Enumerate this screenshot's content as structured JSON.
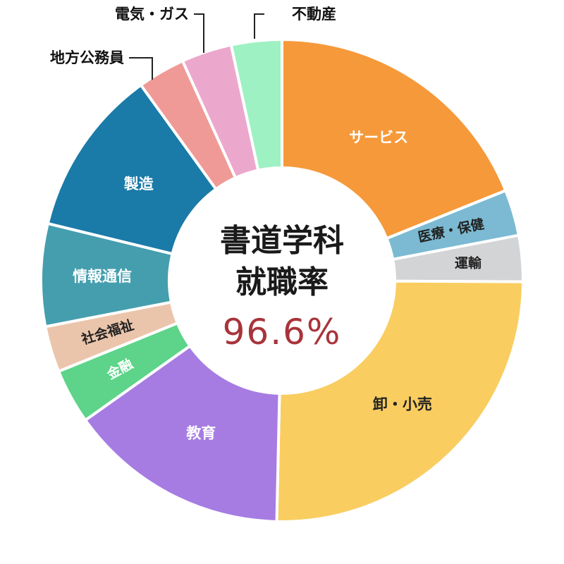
{
  "chart_data": {
    "type": "pie",
    "subtype": "donut",
    "center": {
      "title_line1": "書道学科",
      "title_line2": "就職率",
      "value": "96.6%"
    },
    "categories": [
      "サービス",
      "医療・保健",
      "運輸",
      "卸・小売",
      "教育",
      "金融",
      "社会福祉",
      "情報通信",
      "製造",
      "地方公務員",
      "電気・ガス",
      "不動産"
    ],
    "values": [
      19.0,
      3.1,
      3.1,
      25.4,
      14.9,
      3.7,
      3.1,
      6.9,
      11.3,
      3.2,
      3.4,
      3.4
    ],
    "colors": [
      "#f6993a",
      "#7bbad2",
      "#d3d4d6",
      "#f9cd60",
      "#a67ce3",
      "#5dd489",
      "#ebc5ab",
      "#459eae",
      "#1a7aa8",
      "#ef9a96",
      "#eca8cc",
      "#9ef1c2"
    ],
    "label_colors": [
      "#ffffff",
      "#222222",
      "#222222",
      "#222222",
      "#ffffff",
      "#ffffff",
      "#222222",
      "#ffffff",
      "#ffffff",
      "#111111",
      "#111111",
      "#111111"
    ],
    "label_placement": [
      "inside",
      "inside",
      "inside",
      "inside",
      "inside",
      "inside",
      "inside",
      "inside",
      "inside",
      "outside",
      "outside",
      "outside"
    ]
  }
}
